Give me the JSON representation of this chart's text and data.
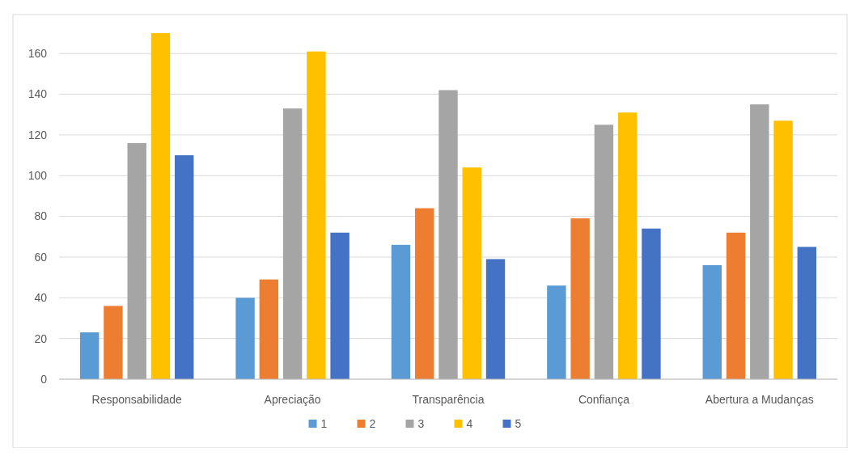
{
  "chart_data": {
    "type": "bar",
    "categories": [
      "Responsabilidade",
      "Apreciação",
      "Transparência",
      "Confiança",
      "Abertura a Mudanças"
    ],
    "series": [
      {
        "name": "1",
        "color": "#5b9bd5",
        "values": [
          23,
          40,
          66,
          46,
          56
        ]
      },
      {
        "name": "2",
        "color": "#ed7d31",
        "values": [
          36,
          49,
          84,
          79,
          72
        ]
      },
      {
        "name": "3",
        "color": "#a5a5a5",
        "values": [
          116,
          133,
          142,
          125,
          135
        ]
      },
      {
        "name": "4",
        "color": "#ffc000",
        "values": [
          170,
          161,
          104,
          131,
          127
        ]
      },
      {
        "name": "5",
        "color": "#4472c4",
        "values": [
          110,
          72,
          59,
          74,
          65
        ]
      }
    ],
    "ylim": [
      0,
      170
    ],
    "yticks": [
      0,
      20,
      40,
      60,
      80,
      100,
      120,
      140,
      160
    ],
    "grid": "y",
    "legend": "bottom"
  }
}
